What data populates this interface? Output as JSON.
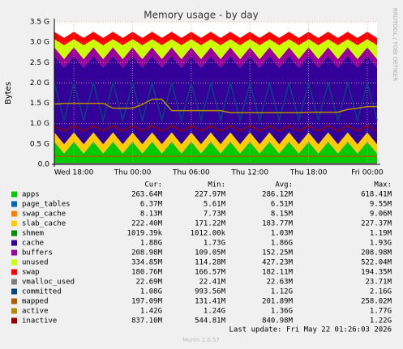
{
  "chart_data": {
    "type": "area",
    "title": "Memory usage - by day",
    "ylabel": "Bytes",
    "side_note": "RRDTOOL / TOBI OETIKER",
    "last_update": "Last update: Fri May 22 01:26:03 2026",
    "footer": "Munin 2.0.57",
    "legend_headers": [
      "Cur:",
      "Min:",
      "Avg:",
      "Max:"
    ],
    "ylim": [
      0,
      3500000000
    ],
    "yticks": [
      {
        "value": 0,
        "label": "0.0"
      },
      {
        "value": 500000000,
        "label": "0.5 G"
      },
      {
        "value": 1000000000,
        "label": "1.0 G"
      },
      {
        "value": 1500000000,
        "label": "1.5 G"
      },
      {
        "value": 2000000000,
        "label": "2.0 G"
      },
      {
        "value": 2500000000,
        "label": "2.5 G"
      },
      {
        "value": 3000000000,
        "label": "3.0 G"
      },
      {
        "value": 3500000000,
        "label": "3.5 G"
      }
    ],
    "grid": true,
    "categories": [
      null,
      null,
      "Wed 18:00",
      null,
      null,
      null,
      null,
      null,
      "Thu 00:00",
      null,
      null,
      null,
      null,
      null,
      "Thu 06:00",
      null,
      null,
      null,
      null,
      null,
      "Thu 12:00",
      null,
      null,
      null,
      null,
      null,
      "Thu 18:00",
      null,
      null,
      null,
      null,
      null,
      "Fri 00:00",
      null
    ],
    "series": [
      {
        "name": "apps",
        "color": "#00cc00",
        "kind": "stack",
        "cur": "263.64M",
        "min": "227.97M",
        "avg": "286.12M",
        "max": "618.41M",
        "values": [
          550000000.0,
          260000000.0,
          550000000.0,
          260000000.0,
          550000000.0,
          260000000.0,
          550000000.0,
          260000000.0,
          550000000.0,
          260000000.0,
          550000000.0,
          260000000.0,
          550000000.0,
          260000000.0,
          550000000.0,
          260000000.0,
          550000000.0,
          260000000.0,
          550000000.0,
          260000000.0,
          550000000.0,
          260000000.0,
          550000000.0,
          260000000.0,
          550000000.0,
          260000000.0,
          550000000.0,
          260000000.0,
          550000000.0,
          260000000.0,
          550000000.0,
          260000000.0,
          550000000.0,
          260000000.0
        ]
      },
      {
        "name": "page_tables",
        "color": "#0066b3",
        "kind": "stack",
        "cur": "6.37M",
        "min": "5.61M",
        "avg": "6.51M",
        "max": "9.55M",
        "values": [
          6400000.0,
          6400000.0,
          6400000.0,
          6400000.0,
          6400000.0,
          6400000.0,
          6400000.0,
          6400000.0,
          6400000.0,
          6400000.0,
          6400000.0,
          6400000.0,
          6400000.0,
          6400000.0,
          6400000.0,
          6400000.0,
          6400000.0,
          6400000.0,
          6400000.0,
          6400000.0,
          6400000.0,
          6400000.0,
          6400000.0,
          6400000.0,
          6400000.0,
          6400000.0,
          6400000.0,
          6400000.0,
          6400000.0,
          6400000.0,
          6400000.0,
          6400000.0,
          6400000.0,
          6400000.0
        ]
      },
      {
        "name": "swap_cache",
        "color": "#ff8000",
        "kind": "stack",
        "cur": "8.13M",
        "min": "7.73M",
        "avg": "8.15M",
        "max": "9.06M",
        "values": [
          8000000.0,
          8000000.0,
          8000000.0,
          8000000.0,
          8000000.0,
          8000000.0,
          8000000.0,
          8000000.0,
          8000000.0,
          8000000.0,
          8000000.0,
          8000000.0,
          8000000.0,
          8000000.0,
          8000000.0,
          8000000.0,
          8000000.0,
          8000000.0,
          8000000.0,
          8000000.0,
          8000000.0,
          8000000.0,
          8000000.0,
          8000000.0,
          8000000.0,
          8000000.0,
          8000000.0,
          8000000.0,
          8000000.0,
          8000000.0,
          8000000.0,
          8000000.0,
          8000000.0,
          8000000.0
        ]
      },
      {
        "name": "slab_cache",
        "color": "#ffcc00",
        "kind": "stack",
        "cur": "222.40M",
        "min": "171.22M",
        "avg": "183.77M",
        "max": "227.37M",
        "values": [
          220000000.0,
          220000000.0,
          220000000.0,
          220000000.0,
          220000000.0,
          220000000.0,
          220000000.0,
          220000000.0,
          220000000.0,
          220000000.0,
          220000000.0,
          220000000.0,
          220000000.0,
          220000000.0,
          220000000.0,
          220000000.0,
          220000000.0,
          220000000.0,
          220000000.0,
          220000000.0,
          220000000.0,
          220000000.0,
          220000000.0,
          220000000.0,
          220000000.0,
          220000000.0,
          220000000.0,
          220000000.0,
          220000000.0,
          220000000.0,
          220000000.0,
          220000000.0,
          220000000.0,
          220000000.0
        ]
      },
      {
        "name": "shmem",
        "color": "#008f00",
        "kind": "stack",
        "cur": "1019.39k",
        "min": "1012.00k",
        "avg": "1.03M",
        "max": "1.19M",
        "values": [
          1000000.0,
          1000000.0,
          1000000.0,
          1000000.0,
          1000000.0,
          1000000.0,
          1000000.0,
          1000000.0,
          1000000.0,
          1000000.0,
          1000000.0,
          1000000.0,
          1000000.0,
          1000000.0,
          1000000.0,
          1000000.0,
          1000000.0,
          1000000.0,
          1000000.0,
          1000000.0,
          1000000.0,
          1000000.0,
          1000000.0,
          1000000.0,
          1000000.0,
          1000000.0,
          1000000.0,
          1000000.0,
          1000000.0,
          1000000.0,
          1000000.0,
          1000000.0,
          1000000.0,
          1000000.0
        ]
      },
      {
        "name": "cache",
        "color": "#330099",
        "kind": "stack",
        "cur": "1.88G",
        "min": "1.73G",
        "avg": "1.86G",
        "max": "1.93G",
        "values": [
          1880000000.0,
          1880000000.0,
          1880000000.0,
          1880000000.0,
          1880000000.0,
          1880000000.0,
          1880000000.0,
          1880000000.0,
          1880000000.0,
          1880000000.0,
          1880000000.0,
          1880000000.0,
          1880000000.0,
          1880000000.0,
          1880000000.0,
          1880000000.0,
          1880000000.0,
          1880000000.0,
          1880000000.0,
          1880000000.0,
          1880000000.0,
          1880000000.0,
          1880000000.0,
          1880000000.0,
          1880000000.0,
          1880000000.0,
          1880000000.0,
          1880000000.0,
          1880000000.0,
          1880000000.0,
          1880000000.0,
          1880000000.0,
          1880000000.0,
          1880000000.0
        ]
      },
      {
        "name": "buffers",
        "color": "#990099",
        "kind": "stack",
        "cur": "208.98M",
        "min": "109.05M",
        "avg": "152.25M",
        "max": "208.98M",
        "values": [
          210000000.0,
          210000000.0,
          210000000.0,
          210000000.0,
          210000000.0,
          210000000.0,
          210000000.0,
          210000000.0,
          210000000.0,
          210000000.0,
          210000000.0,
          210000000.0,
          210000000.0,
          210000000.0,
          210000000.0,
          210000000.0,
          210000000.0,
          210000000.0,
          210000000.0,
          210000000.0,
          210000000.0,
          210000000.0,
          210000000.0,
          210000000.0,
          210000000.0,
          210000000.0,
          210000000.0,
          210000000.0,
          210000000.0,
          210000000.0,
          210000000.0,
          210000000.0,
          210000000.0,
          210000000.0
        ]
      },
      {
        "name": "unused",
        "color": "#ccff00",
        "kind": "stack",
        "cur": "334.85M",
        "min": "114.28M",
        "avg": "427.23M",
        "max": "522.04M",
        "values": [
          200000000.0,
          340000000.0,
          200000000.0,
          340000000.0,
          200000000.0,
          340000000.0,
          200000000.0,
          340000000.0,
          200000000.0,
          340000000.0,
          200000000.0,
          340000000.0,
          200000000.0,
          340000000.0,
          200000000.0,
          340000000.0,
          200000000.0,
          340000000.0,
          200000000.0,
          340000000.0,
          200000000.0,
          340000000.0,
          200000000.0,
          340000000.0,
          200000000.0,
          340000000.0,
          200000000.0,
          340000000.0,
          200000000.0,
          340000000.0,
          200000000.0,
          340000000.0,
          200000000.0,
          340000000.0
        ]
      },
      {
        "name": "swap",
        "color": "#ff0000",
        "kind": "stack",
        "cur": "180.76M",
        "min": "166.57M",
        "avg": "182.11M",
        "max": "194.35M",
        "values": [
          180000000.0,
          180000000.0,
          180000000.0,
          180000000.0,
          180000000.0,
          180000000.0,
          180000000.0,
          180000000.0,
          180000000.0,
          180000000.0,
          180000000.0,
          180000000.0,
          180000000.0,
          180000000.0,
          180000000.0,
          180000000.0,
          180000000.0,
          180000000.0,
          180000000.0,
          180000000.0,
          180000000.0,
          180000000.0,
          180000000.0,
          180000000.0,
          180000000.0,
          180000000.0,
          180000000.0,
          180000000.0,
          180000000.0,
          180000000.0,
          180000000.0,
          180000000.0,
          180000000.0,
          180000000.0
        ]
      },
      {
        "name": "vmalloc_used",
        "color": "#808080",
        "kind": "line",
        "cur": "22.69M",
        "min": "22.41M",
        "avg": "22.63M",
        "max": "23.71M",
        "values": [
          22700000.0,
          22700000.0,
          22700000.0,
          22700000.0,
          22700000.0,
          22700000.0,
          22700000.0,
          22700000.0,
          22700000.0,
          22700000.0,
          22700000.0,
          22700000.0,
          22700000.0,
          22700000.0,
          22700000.0,
          22700000.0,
          22700000.0,
          22700000.0,
          22700000.0,
          22700000.0,
          22700000.0,
          22700000.0,
          22700000.0,
          22700000.0,
          22700000.0,
          22700000.0,
          22700000.0,
          22700000.0,
          22700000.0,
          22700000.0,
          22700000.0,
          22700000.0,
          22700000.0,
          22700000.0
        ]
      },
      {
        "name": "committed",
        "color": "#00487d",
        "kind": "line",
        "cur": "1.08G",
        "min": "993.56M",
        "avg": "1.12G",
        "max": "2.16G",
        "values": [
          2000000000.0,
          1080000000.0,
          2000000000.0,
          1080000000.0,
          2000000000.0,
          1080000000.0,
          2000000000.0,
          1080000000.0,
          2000000000.0,
          1080000000.0,
          2000000000.0,
          1080000000.0,
          2000000000.0,
          1080000000.0,
          2000000000.0,
          1080000000.0,
          2000000000.0,
          1080000000.0,
          2000000000.0,
          1080000000.0,
          2000000000.0,
          1080000000.0,
          2000000000.0,
          1080000000.0,
          2000000000.0,
          1080000000.0,
          2000000000.0,
          1080000000.0,
          2000000000.0,
          1080000000.0,
          2000000000.0,
          1080000000.0,
          2000000000.0,
          1080000000.0
        ]
      },
      {
        "name": "mapped",
        "color": "#b35a00",
        "kind": "line",
        "cur": "197.09M",
        "min": "131.41M",
        "avg": "201.89M",
        "max": "258.02M",
        "values": [
          197000000.0,
          197000000.0,
          197000000.0,
          197000000.0,
          197000000.0,
          197000000.0,
          197000000.0,
          197000000.0,
          197000000.0,
          197000000.0,
          197000000.0,
          197000000.0,
          197000000.0,
          197000000.0,
          197000000.0,
          197000000.0,
          197000000.0,
          197000000.0,
          197000000.0,
          197000000.0,
          197000000.0,
          197000000.0,
          197000000.0,
          197000000.0,
          197000000.0,
          197000000.0,
          197000000.0,
          197000000.0,
          197000000.0,
          197000000.0,
          197000000.0,
          197000000.0,
          197000000.0,
          197000000.0
        ]
      },
      {
        "name": "active",
        "color": "#b38f00",
        "kind": "line",
        "cur": "1.42G",
        "min": "1.24G",
        "avg": "1.36G",
        "max": "1.77G",
        "values": [
          1480000000.0,
          1500000000.0,
          1500000000.0,
          1500000000.0,
          1500000000.0,
          1500000000.0,
          1380000000.0,
          1380000000.0,
          1380000000.0,
          1470000000.0,
          1600000000.0,
          1600000000.0,
          1320000000.0,
          1320000000.0,
          1320000000.0,
          1320000000.0,
          1320000000.0,
          1320000000.0,
          1270000000.0,
          1270000000.0,
          1270000000.0,
          1270000000.0,
          1270000000.0,
          1270000000.0,
          1270000000.0,
          1270000000.0,
          1280000000.0,
          1280000000.0,
          1280000000.0,
          1280000000.0,
          1350000000.0,
          1380000000.0,
          1420000000.0,
          1420000000.0
        ]
      },
      {
        "name": "inactive",
        "color": "#990000",
        "kind": "line",
        "cur": "837.10M",
        "min": "544.81M",
        "avg": "840.98M",
        "max": "1.22G",
        "values": [
          950000000.0,
          820000000.0,
          950000000.0,
          820000000.0,
          950000000.0,
          820000000.0,
          950000000.0,
          820000000.0,
          950000000.0,
          820000000.0,
          950000000.0,
          820000000.0,
          950000000.0,
          820000000.0,
          950000000.0,
          820000000.0,
          950000000.0,
          820000000.0,
          950000000.0,
          820000000.0,
          950000000.0,
          820000000.0,
          950000000.0,
          820000000.0,
          950000000.0,
          820000000.0,
          950000000.0,
          820000000.0,
          950000000.0,
          820000000.0,
          950000000.0,
          820000000.0,
          950000000.0,
          820000000.0
        ]
      }
    ]
  }
}
